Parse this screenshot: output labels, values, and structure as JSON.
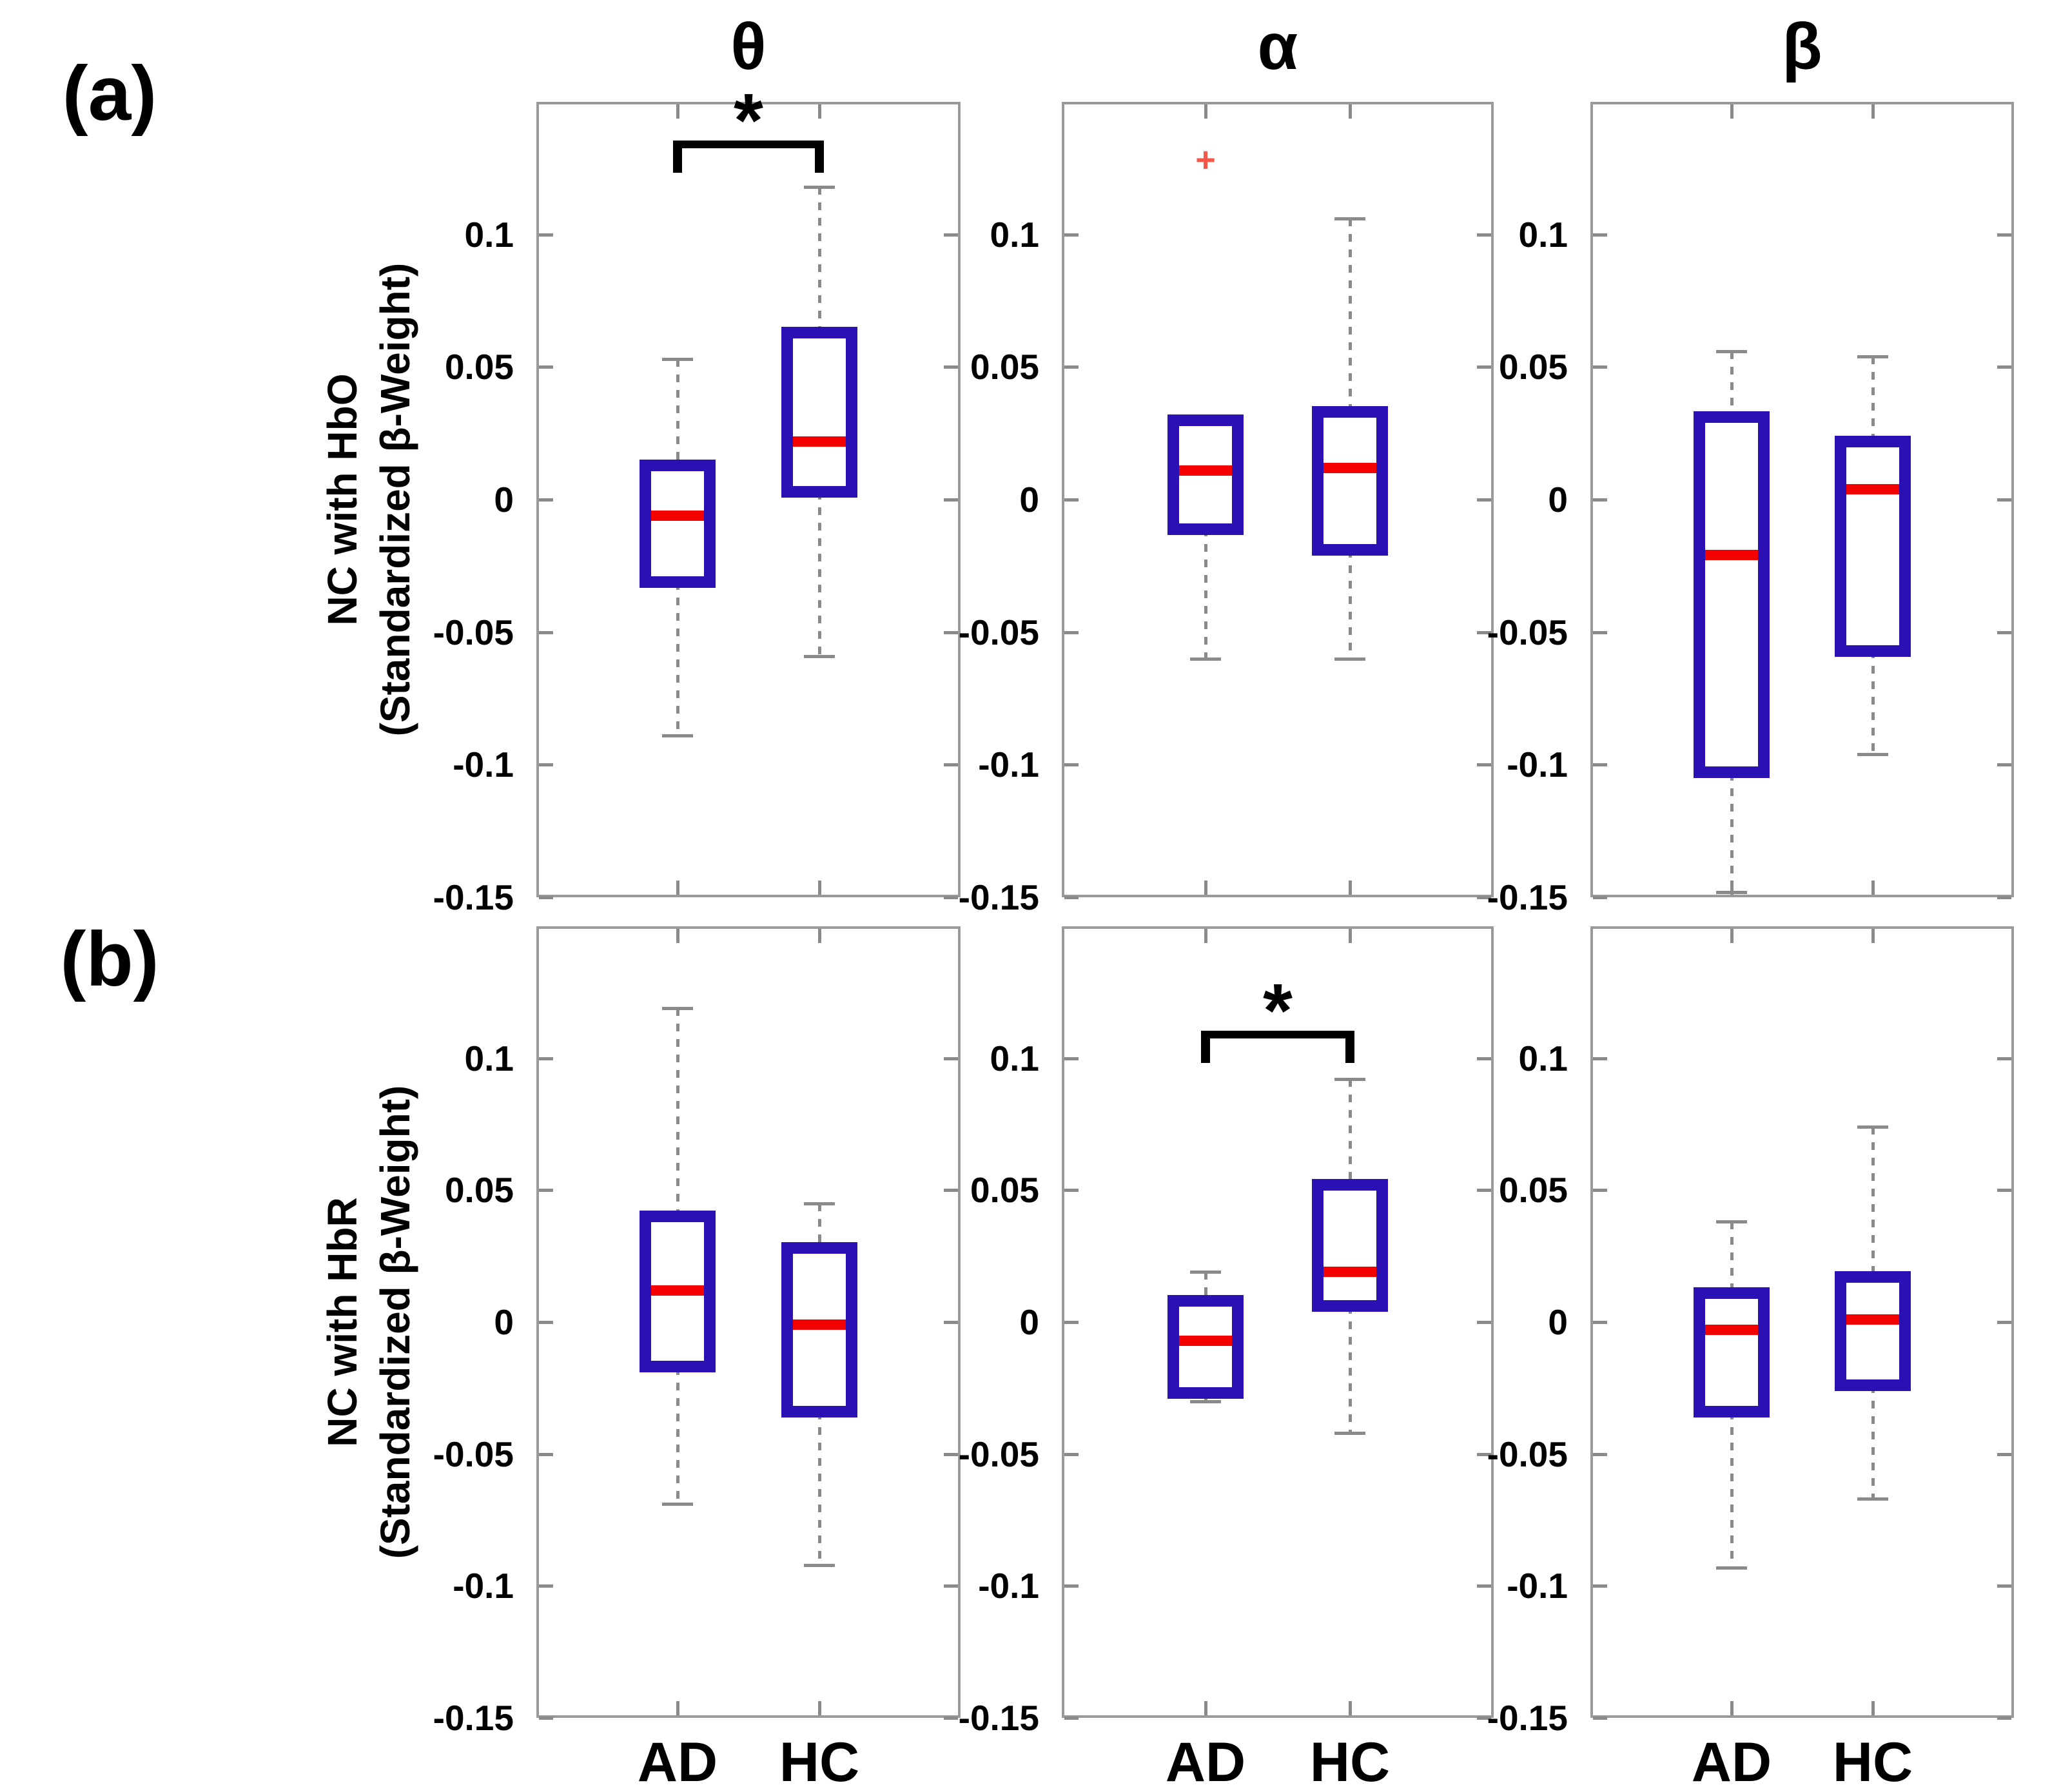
{
  "figure": {
    "panels": [
      {
        "label": "(a)",
        "ylabel_line1": "NC with HbO",
        "ylabel_line2": "(Standardized β-Weight)"
      },
      {
        "label": "(b)",
        "ylabel_line1": "NC with HbR",
        "ylabel_line2": "(Standardized β-Weight)"
      }
    ],
    "column_titles": [
      "θ",
      "α",
      "β"
    ],
    "x_labels": [
      "AD",
      "HC"
    ],
    "y_tick_labels": [
      "0.1",
      "0.05",
      "0",
      "-0.05",
      "-0.1",
      "-0.15"
    ],
    "y_tick_values": [
      0.1,
      0.05,
      0,
      -0.05,
      -0.1,
      -0.15
    ]
  },
  "colors": {
    "box": "#2b10b4",
    "median": "#f40000",
    "whisker": "#8a8a8a",
    "frame": "#9a9a9a",
    "tick": "#8a8a8a",
    "outlier": "#f4564a",
    "text": "#000000",
    "sig": "#000000"
  },
  "chart_data": [
    {
      "type": "boxplot",
      "panel": "(a)",
      "row": 0,
      "col": 0,
      "title": "θ",
      "ylabel": "NC with HbO (Standardized β-Weight)",
      "ylim": [
        -0.15,
        0.15
      ],
      "x_categories": [
        "AD",
        "HC"
      ],
      "groups": [
        {
          "name": "AD",
          "whisker_low": -0.089,
          "q1": -0.031,
          "median": -0.006,
          "q3": 0.013,
          "whisker_high": 0.053,
          "outliers": []
        },
        {
          "name": "HC",
          "whisker_low": -0.059,
          "q1": 0.003,
          "median": 0.022,
          "q3": 0.063,
          "whisker_high": 0.118,
          "outliers": []
        }
      ],
      "significance": {
        "label": "*",
        "bracket_y": 0.134
      }
    },
    {
      "type": "boxplot",
      "panel": "(a)",
      "row": 0,
      "col": 1,
      "title": "α",
      "ylabel": "NC with HbO (Standardized β-Weight)",
      "ylim": [
        -0.15,
        0.15
      ],
      "x_categories": [
        "AD",
        "HC"
      ],
      "groups": [
        {
          "name": "AD",
          "whisker_low": -0.06,
          "q1": -0.011,
          "median": 0.011,
          "q3": 0.03,
          "whisker_high": 0.031,
          "outliers": [
            0.128
          ]
        },
        {
          "name": "HC",
          "whisker_low": -0.06,
          "q1": -0.019,
          "median": 0.012,
          "q3": 0.033,
          "whisker_high": 0.106,
          "outliers": []
        }
      ],
      "significance": null
    },
    {
      "type": "boxplot",
      "panel": "(a)",
      "row": 0,
      "col": 2,
      "title": "β",
      "ylabel": "NC with HbO (Standardized β-Weight)",
      "ylim": [
        -0.15,
        0.15
      ],
      "x_categories": [
        "AD",
        "HC"
      ],
      "groups": [
        {
          "name": "AD",
          "whisker_low": -0.148,
          "q1": -0.103,
          "median": -0.021,
          "q3": 0.031,
          "whisker_high": 0.056,
          "outliers": []
        },
        {
          "name": "HC",
          "whisker_low": -0.096,
          "q1": -0.057,
          "median": 0.004,
          "q3": 0.022,
          "whisker_high": 0.054,
          "outliers": []
        }
      ],
      "significance": null
    },
    {
      "type": "boxplot",
      "panel": "(b)",
      "row": 1,
      "col": 0,
      "title": "θ",
      "ylabel": "NC with HbR (Standardized β-Weight)",
      "ylim": [
        -0.15,
        0.15
      ],
      "x_categories": [
        "AD",
        "HC"
      ],
      "groups": [
        {
          "name": "AD",
          "whisker_low": -0.069,
          "q1": -0.017,
          "median": 0.012,
          "q3": 0.04,
          "whisker_high": 0.119,
          "outliers": []
        },
        {
          "name": "HC",
          "whisker_low": -0.092,
          "q1": -0.034,
          "median": -0.001,
          "q3": 0.028,
          "whisker_high": 0.045,
          "outliers": []
        }
      ],
      "significance": null
    },
    {
      "type": "boxplot",
      "panel": "(b)",
      "row": 1,
      "col": 1,
      "title": "α",
      "ylabel": "NC with HbR (Standardized β-Weight)",
      "ylim": [
        -0.15,
        0.15
      ],
      "x_categories": [
        "AD",
        "HC"
      ],
      "groups": [
        {
          "name": "AD",
          "whisker_low": -0.03,
          "q1": -0.027,
          "median": -0.007,
          "q3": 0.008,
          "whisker_high": 0.019,
          "outliers": []
        },
        {
          "name": "HC",
          "whisker_low": -0.042,
          "q1": 0.006,
          "median": 0.019,
          "q3": 0.052,
          "whisker_high": 0.092,
          "outliers": []
        }
      ],
      "significance": {
        "label": "*",
        "bracket_y": 0.109
      }
    },
    {
      "type": "boxplot",
      "panel": "(b)",
      "row": 1,
      "col": 2,
      "title": "β",
      "ylabel": "NC with HbR (Standardized β-Weight)",
      "ylim": [
        -0.15,
        0.15
      ],
      "x_categories": [
        "AD",
        "HC"
      ],
      "groups": [
        {
          "name": "AD",
          "whisker_low": -0.093,
          "q1": -0.034,
          "median": -0.003,
          "q3": 0.011,
          "whisker_high": 0.038,
          "outliers": []
        },
        {
          "name": "HC",
          "whisker_low": -0.067,
          "q1": -0.024,
          "median": 0.001,
          "q3": 0.017,
          "whisker_high": 0.074,
          "outliers": []
        }
      ],
      "significance": null
    }
  ]
}
